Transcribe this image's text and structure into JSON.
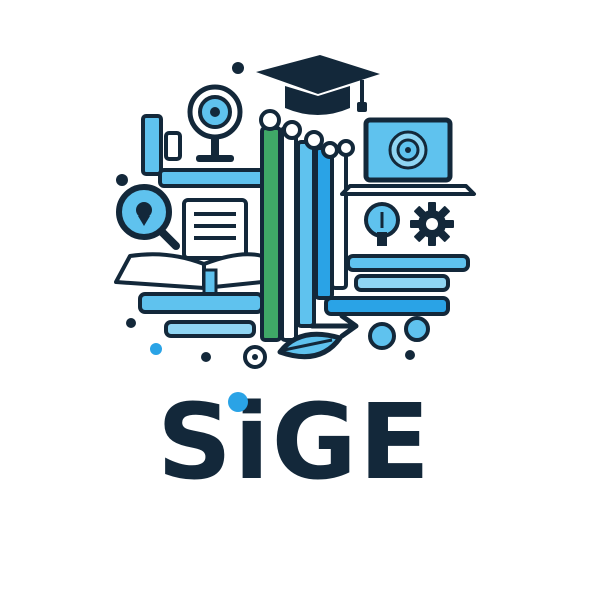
{
  "logo": {
    "wordmark": "SiGE",
    "colors": {
      "navy": "#13283a",
      "accent_blue": "#2aa3e6",
      "light_blue": "#5fc2ee",
      "sky": "#8fd5f3",
      "green": "#3fa867",
      "white": "#ffffff"
    },
    "icons": [
      "graduation-cap-icon",
      "webcam-icon",
      "laptop-icon",
      "magnifier-icon",
      "document-icon",
      "open-book-icon",
      "lightbulb-icon",
      "gear-icon",
      "pencil-icon",
      "arrow-icon",
      "leaf-icon"
    ]
  }
}
